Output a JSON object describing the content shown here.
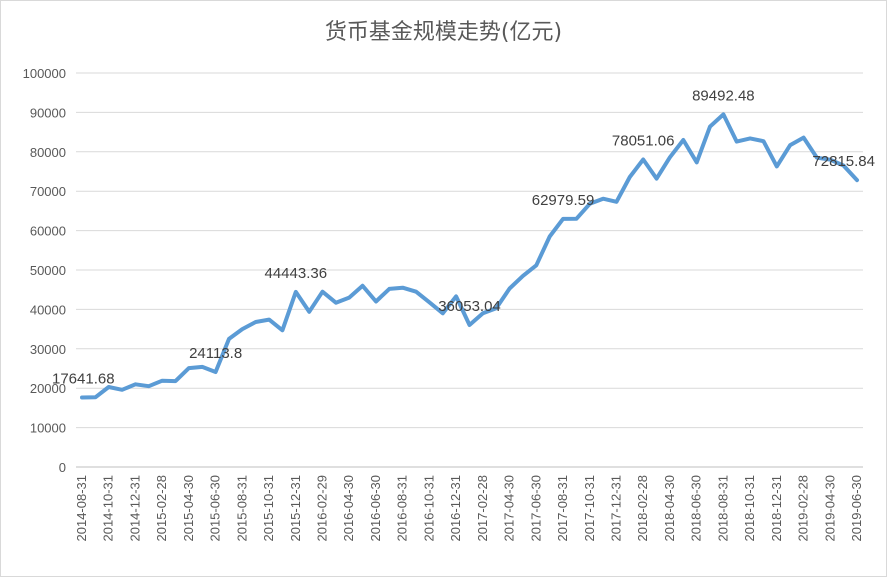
{
  "chart_data": {
    "type": "line",
    "title": "货币基金规模走势(亿元)",
    "xlabel": "",
    "ylabel": "",
    "ylim": [
      0,
      100000
    ],
    "yticks": [
      0,
      10000,
      20000,
      30000,
      40000,
      50000,
      60000,
      70000,
      80000,
      90000,
      100000
    ],
    "grid": "horizontal",
    "legend": "none",
    "line_color": "#5b9bd5",
    "x_tick_labels": [
      "2014-08-31",
      "2014-10-31",
      "2014-12-31",
      "2015-02-28",
      "2015-04-30",
      "2015-06-30",
      "2015-08-31",
      "2015-10-31",
      "2015-12-31",
      "2016-02-29",
      "2016-04-30",
      "2016-06-30",
      "2016-08-31",
      "2016-10-31",
      "2016-12-31",
      "2017-02-28",
      "2017-04-30",
      "2017-06-30",
      "2017-08-31",
      "2017-10-31",
      "2017-12-31",
      "2018-02-28",
      "2018-04-30",
      "2018-06-30",
      "2018-08-31",
      "2018-10-31",
      "2018-12-31",
      "2019-02-28",
      "2019-04-30",
      "2019-06-30"
    ],
    "categories": [
      "2014-08-31",
      "2014-09-30",
      "2014-10-31",
      "2014-11-30",
      "2014-12-31",
      "2015-01-31",
      "2015-02-28",
      "2015-03-31",
      "2015-04-30",
      "2015-05-31",
      "2015-06-30",
      "2015-07-31",
      "2015-08-31",
      "2015-09-30",
      "2015-10-31",
      "2015-11-30",
      "2015-12-31",
      "2016-01-31",
      "2016-02-29",
      "2016-03-31",
      "2016-04-30",
      "2016-05-31",
      "2016-06-30",
      "2016-07-31",
      "2016-08-31",
      "2016-09-30",
      "2016-10-31",
      "2016-11-30",
      "2016-12-31",
      "2017-01-31",
      "2017-02-28",
      "2017-03-31",
      "2017-04-30",
      "2017-05-31",
      "2017-06-30",
      "2017-07-31",
      "2017-08-31",
      "2017-09-30",
      "2017-10-31",
      "2017-11-30",
      "2017-12-31",
      "2018-01-31",
      "2018-02-28",
      "2018-03-31",
      "2018-04-30",
      "2018-05-31",
      "2018-06-30",
      "2018-07-31",
      "2018-08-31",
      "2018-09-30",
      "2018-10-31",
      "2018-11-30",
      "2018-12-31",
      "2019-01-31",
      "2019-02-28",
      "2019-03-31",
      "2019-04-30",
      "2019-05-31",
      "2019-06-30"
    ],
    "values": [
      17641.68,
      17700,
      20300,
      19600,
      21000,
      20500,
      21900,
      21800,
      25100,
      25400,
      24113.8,
      32500,
      35000,
      36800,
      37400,
      34700,
      44443.36,
      39400,
      44500,
      41700,
      43000,
      46000,
      42000,
      45200,
      45500,
      44500,
      41800,
      39000,
      43300,
      36053.04,
      39000,
      40300,
      45300,
      48500,
      51200,
      58500,
      62979.59,
      63000,
      66800,
      68100,
      67300,
      73600,
      78051.06,
      73200,
      78600,
      83000,
      77300,
      86400,
      89492.48,
      82600,
      83400,
      82700,
      76300,
      81700,
      83600,
      78500,
      78000,
      76500,
      72815.84
    ],
    "data_labels": [
      {
        "index": 0,
        "text": "17641.68"
      },
      {
        "index": 10,
        "text": "24113.8"
      },
      {
        "index": 16,
        "text": "44443.36"
      },
      {
        "index": 29,
        "text": "36053.04"
      },
      {
        "index": 36,
        "text": "62979.59"
      },
      {
        "index": 42,
        "text": "78051.06"
      },
      {
        "index": 48,
        "text": "89492.48"
      },
      {
        "index": 58,
        "text": "72815.84"
      }
    ]
  }
}
